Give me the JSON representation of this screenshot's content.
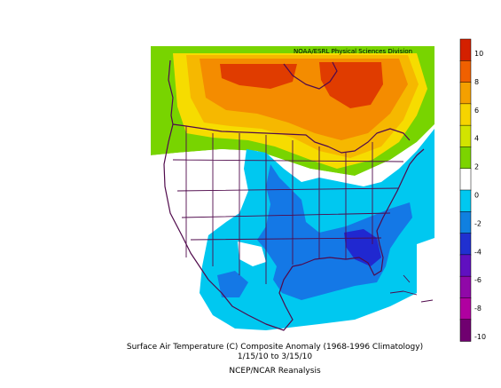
{
  "credit": "NOAA/ESRL Physical Sciences Division",
  "caption": {
    "line1": "Surface Air Temperature (C) Composite Anomaly (1968-1996 Climatology)",
    "line2": "1/15/10  to 3/15/10",
    "line3": "NCEP/NCAR Reanalysis"
  },
  "colorbar": {
    "labels": [
      "10",
      "8",
      "6",
      "4",
      "2",
      "0",
      "-2",
      "-4",
      "-6",
      "-8",
      "-10"
    ],
    "colors": [
      "#d42000",
      "#f06000",
      "#f4a000",
      "#f6d400",
      "#d2e400",
      "#7cd400",
      "#ffffff",
      "#00c8f0",
      "#1080e0",
      "#2030d0",
      "#6010c0",
      "#9008a8",
      "#b000a0",
      "#700070"
    ]
  },
  "palette": {
    "red": "#e03c00",
    "orange": "#f48c00",
    "orange_light": "#f6b800",
    "yellow": "#f6dc00",
    "green": "#78d400",
    "white": "#ffffff",
    "cyan": "#00c8f0",
    "blue": "#1478e6",
    "navy": "#2028d0",
    "border": "#500a4c"
  }
}
